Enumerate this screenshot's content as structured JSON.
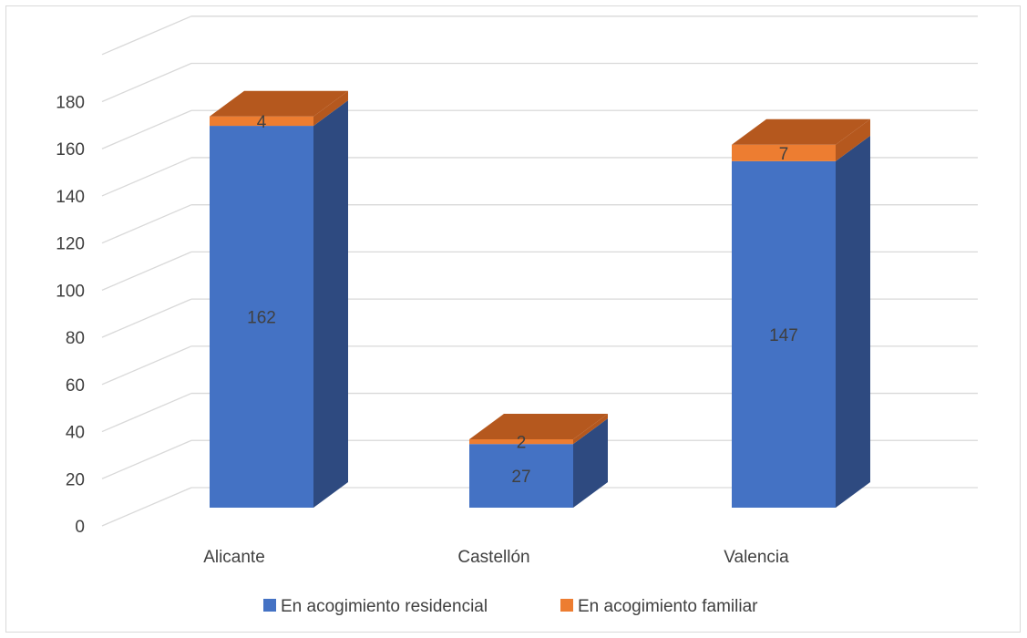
{
  "chart_data": {
    "type": "bar",
    "stacked": true,
    "three_d": true,
    "categories": [
      "Alicante",
      "Castellón",
      "Valencia"
    ],
    "series": [
      {
        "name": "En acogimiento residencial",
        "values": [
          162,
          27,
          147
        ],
        "labels": [
          "162",
          "27",
          "147"
        ],
        "color": "#4472C4",
        "side_color": "#2E4A80",
        "top_color": "#3A62A8"
      },
      {
        "name": "En acogimiento familiar",
        "values": [
          4,
          2,
          7
        ],
        "labels": [
          "4",
          "2",
          "7"
        ],
        "color": "#ED7D31",
        "side_color": "#B5581E",
        "top_color": "#B5581E"
      }
    ],
    "yticks": [
      "0",
      "20",
      "40",
      "60",
      "80",
      "100",
      "120",
      "140",
      "160",
      "180"
    ],
    "ylim": [
      0,
      180
    ],
    "grid": true,
    "grid_color": "#d9d9d9",
    "legend_position": "bottom"
  }
}
